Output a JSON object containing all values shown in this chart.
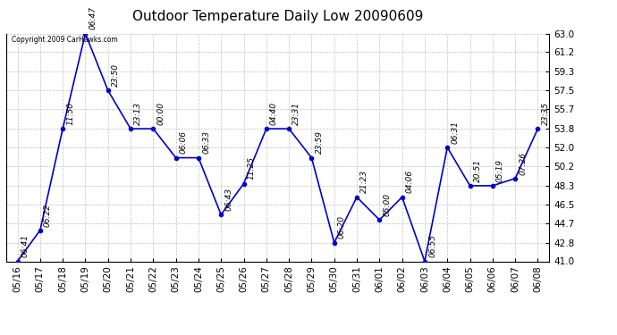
{
  "title": "Outdoor Temperature Daily Low 20090609",
  "copyright_text": "Copyright 2009 CarHawks.com",
  "x_labels": [
    "05/16",
    "05/17",
    "05/18",
    "05/19",
    "05/20",
    "05/21",
    "05/22",
    "05/23",
    "05/24",
    "05/25",
    "05/26",
    "05/27",
    "05/28",
    "05/29",
    "05/30",
    "05/31",
    "06/01",
    "06/02",
    "06/03",
    "06/04",
    "06/05",
    "06/06",
    "06/07",
    "06/08"
  ],
  "y_values": [
    41.0,
    44.0,
    53.8,
    63.0,
    57.5,
    53.8,
    53.8,
    51.0,
    51.0,
    45.5,
    48.5,
    53.8,
    53.8,
    51.0,
    42.8,
    47.2,
    45.0,
    47.2,
    41.0,
    52.0,
    48.3,
    48.3,
    49.0,
    53.8
  ],
  "time_labels": [
    "06:41",
    "06:22",
    "11:50",
    "06:47",
    "23:50",
    "23:13",
    "00:00",
    "06:06",
    "06:33",
    "06:43",
    "11:25",
    "04:40",
    "23:31",
    "23:59",
    "06:20",
    "21:23",
    "05:00",
    "04:06",
    "06:55",
    "06:31",
    "20:51",
    "05:19",
    "07:26",
    "23:35"
  ],
  "y_ticks": [
    41.0,
    42.8,
    44.7,
    46.5,
    48.3,
    50.2,
    52.0,
    53.8,
    55.7,
    57.5,
    59.3,
    61.2,
    63.0
  ],
  "y_min": 41.0,
  "y_max": 63.0,
  "line_color": "#0000cc",
  "marker_color": "#0000cc",
  "background_color": "#ffffff",
  "grid_color": "#bbbbbb",
  "title_fontsize": 11,
  "label_fontsize": 6.5,
  "tick_fontsize": 7.5
}
